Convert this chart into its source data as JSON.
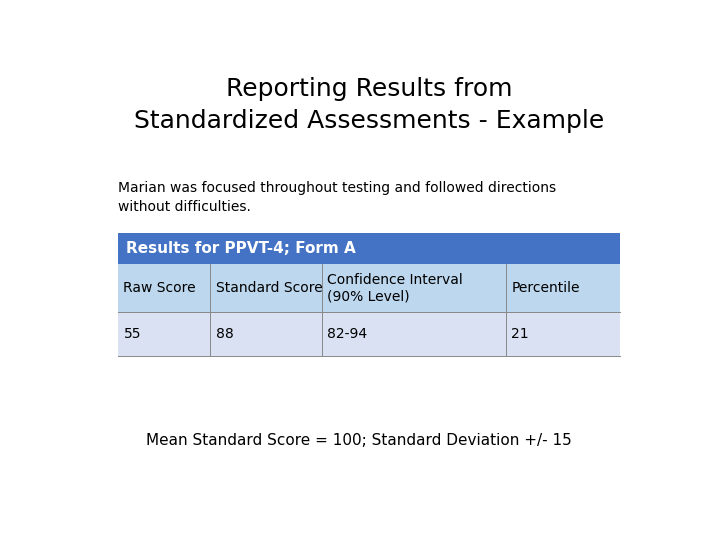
{
  "title_line1": "Reporting Results from",
  "title_line2": "Standardized Assessments - Example",
  "title_fontsize": 18,
  "body_text": "Marian was focused throughout testing and followed directions\nwithout difficulties.",
  "body_fontsize": 10,
  "table_header": "Results for PPVT-4; Form A",
  "table_header_bg": "#4472C4",
  "table_header_text_color": "#FFFFFF",
  "col_headers": [
    "Raw Score",
    "Standard Score",
    "Confidence Interval\n(90% Level)",
    "Percentile"
  ],
  "col_header_bg": "#BDD7EE",
  "data_row": [
    "55",
    "88",
    "82-94",
    "21"
  ],
  "data_row_bg": "#D9E1F2",
  "footer_text": "Mean Standard Score = 100; Standard Deviation +/- 15",
  "footer_fontsize": 11,
  "background_color": "#FFFFFF",
  "text_color": "#000000",
  "table_fontsize": 10,
  "table_header_fontsize": 11
}
